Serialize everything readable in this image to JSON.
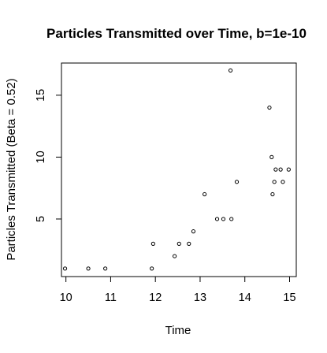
{
  "chart_data": {
    "type": "scatter",
    "title": "Particles Transmitted over Time, b=1e-10",
    "xlabel": "Time",
    "ylabel": "Particles Transmitted (Beta = 0.52)",
    "xlim": [
      9.9,
      15.15
    ],
    "ylim": [
      0.35,
      17.6
    ],
    "xticks": [
      10,
      11,
      12,
      13,
      14,
      15
    ],
    "yticks": [
      5,
      10,
      15
    ],
    "grid": false,
    "legend": "none",
    "points": [
      {
        "x": 9.98,
        "y": 1
      },
      {
        "x": 10.5,
        "y": 1
      },
      {
        "x": 10.88,
        "y": 1
      },
      {
        "x": 11.92,
        "y": 1
      },
      {
        "x": 11.95,
        "y": 3
      },
      {
        "x": 12.43,
        "y": 2
      },
      {
        "x": 12.53,
        "y": 3
      },
      {
        "x": 12.75,
        "y": 3
      },
      {
        "x": 12.85,
        "y": 4
      },
      {
        "x": 13.1,
        "y": 7
      },
      {
        "x": 13.38,
        "y": 5
      },
      {
        "x": 13.52,
        "y": 5
      },
      {
        "x": 13.68,
        "y": 17
      },
      {
        "x": 13.7,
        "y": 5
      },
      {
        "x": 13.82,
        "y": 8
      },
      {
        "x": 14.55,
        "y": 14
      },
      {
        "x": 14.6,
        "y": 10
      },
      {
        "x": 14.62,
        "y": 7
      },
      {
        "x": 14.66,
        "y": 8
      },
      {
        "x": 14.69,
        "y": 9
      },
      {
        "x": 14.8,
        "y": 9
      },
      {
        "x": 14.85,
        "y": 8
      },
      {
        "x": 14.98,
        "y": 9
      }
    ]
  }
}
